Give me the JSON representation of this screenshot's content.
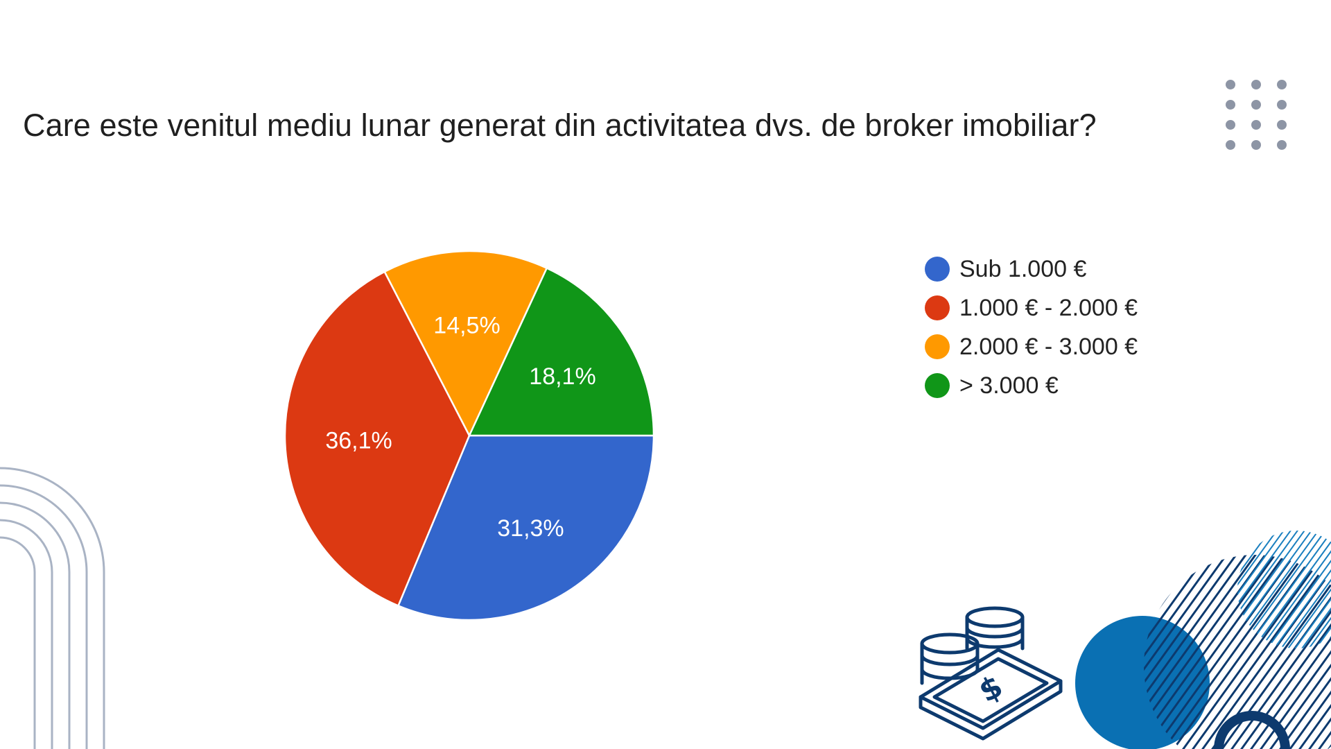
{
  "slide": {
    "title": "Care este venitul mediu lunar generat din activitatea dvs. de broker imobiliar?"
  },
  "chart_data": {
    "type": "pie",
    "title": "Care este venitul mediu lunar generat din activitatea dvs. de broker imobiliar?",
    "categories": [
      "Sub 1.000 €",
      "1.000 € - 2.000 €",
      "2.000 € - 3.000 €",
      "> 3.000 €"
    ],
    "values": [
      31.3,
      36.1,
      14.5,
      18.1
    ],
    "data_labels": [
      "31,3%",
      "36,1%",
      "14,5%",
      "18,1%"
    ],
    "colors": [
      "#3366cc",
      "#dc3912",
      "#ff9900",
      "#109618"
    ],
    "start": "3 o'clock",
    "direction": "clockwise",
    "legend_position": "right"
  },
  "decorations": {
    "dot_grid_color": "#8d95a5",
    "arches_color": "#a9b3c4",
    "circle_color": "#0a70b3",
    "stripes_color": "#0d3a6e",
    "stripes_light_color": "#1a7fbf",
    "icons": [
      "money-coins-icon",
      "dollar-sign-icon"
    ]
  }
}
